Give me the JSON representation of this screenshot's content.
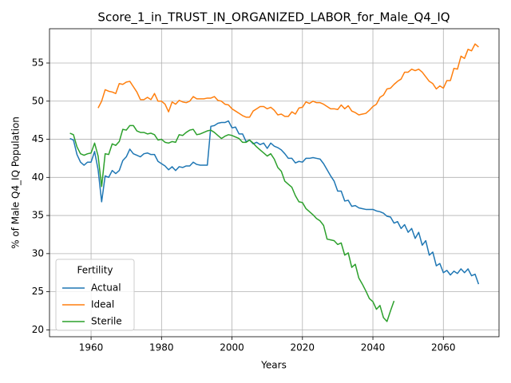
{
  "chart_data": {
    "type": "line",
    "title": "Score_1_in_TRUST_IN_ORGANIZED_LABOR_for_Male_Q4_IQ",
    "xlabel": "Years",
    "ylabel": "% of Male Q4_IQ Population",
    "legend_title": "Fertility",
    "legend": "lower left",
    "grid": true,
    "xlim": [
      1948.2,
      2075.8
    ],
    "ylim": [
      19.1,
      59.5
    ],
    "xticks": [
      1960,
      1980,
      2000,
      2020,
      2040,
      2060
    ],
    "yticks": [
      20,
      25,
      30,
      35,
      40,
      45,
      50,
      55
    ],
    "x": [
      1954,
      1955,
      1956,
      1957,
      1958,
      1959,
      1960,
      1961,
      1962,
      1963,
      1964,
      1965,
      1966,
      1967,
      1968,
      1969,
      1970,
      1971,
      1972,
      1973,
      1974,
      1975,
      1976,
      1977,
      1978,
      1979,
      1980,
      1981,
      1982,
      1983,
      1984,
      1985,
      1986,
      1987,
      1988,
      1989,
      1990,
      1991,
      1992,
      1993,
      1994,
      1995,
      1996,
      1997,
      1998,
      1999,
      2000,
      2001,
      2002,
      2003,
      2004,
      2005,
      2006,
      2007,
      2008,
      2009,
      2010,
      2011,
      2012,
      2013,
      2014,
      2015,
      2016,
      2017,
      2018,
      2019,
      2020,
      2021,
      2022,
      2023,
      2024,
      2025,
      2026,
      2027,
      2028,
      2029,
      2030,
      2031,
      2032,
      2033,
      2034,
      2035,
      2036,
      2037,
      2038,
      2039,
      2040,
      2041,
      2042,
      2043,
      2044,
      2045,
      2046,
      2047,
      2048,
      2049,
      2050,
      2051,
      2052,
      2053,
      2054,
      2055,
      2056,
      2057,
      2058,
      2059,
      2060,
      2061,
      2062,
      2063,
      2064,
      2065,
      2066,
      2067,
      2068,
      2069,
      2070
    ],
    "series": [
      {
        "name": "Actual",
        "color": "#1f77b4",
        "values": [
          45.1,
          44.9,
          43.0,
          42.0,
          41.6,
          42.0,
          42.0,
          43.4,
          41.0,
          36.8,
          40.2,
          40.0,
          40.9,
          40.5,
          40.9,
          42.2,
          42.7,
          43.7,
          43.1,
          42.9,
          42.7,
          43.1,
          43.2,
          43.0,
          43.0,
          42.1,
          41.8,
          41.5,
          41.0,
          41.4,
          40.9,
          41.4,
          41.3,
          41.5,
          41.5,
          42.0,
          41.7,
          41.6,
          41.6,
          41.6,
          46.7,
          46.8,
          47.1,
          47.2,
          47.2,
          47.4,
          46.5,
          46.6,
          45.7,
          45.7,
          44.7,
          44.9,
          44.4,
          44.6,
          44.3,
          44.5,
          43.8,
          44.5,
          44.1,
          43.9,
          43.6,
          43.1,
          42.5,
          42.5,
          41.9,
          42.1,
          42.0,
          42.5,
          42.5,
          42.6,
          42.5,
          42.4,
          41.8,
          41.0,
          40.2,
          39.5,
          38.2,
          38.2,
          36.9,
          37.0,
          36.2,
          36.3,
          36.0,
          35.9,
          35.8,
          35.8,
          35.8,
          35.6,
          35.5,
          35.3,
          34.9,
          34.8,
          34.0,
          34.2,
          33.3,
          33.8,
          32.8,
          33.3,
          32.0,
          32.8,
          31.1,
          31.7,
          29.8,
          30.2,
          28.4,
          28.7,
          27.5,
          27.8,
          27.2,
          27.7,
          27.4,
          28.0,
          27.5,
          28.0,
          27.1,
          27.3,
          26.0
        ]
      },
      {
        "name": "Ideal",
        "color": "#ff7f0e",
        "values": [
          null,
          null,
          null,
          null,
          null,
          null,
          null,
          null,
          49.1,
          50.0,
          51.5,
          51.3,
          51.2,
          51.0,
          52.3,
          52.2,
          52.5,
          52.6,
          51.9,
          51.2,
          50.2,
          50.2,
          50.5,
          50.2,
          51.0,
          50.0,
          50.0,
          49.6,
          48.6,
          49.9,
          49.6,
          50.1,
          49.9,
          49.8,
          50.0,
          50.6,
          50.3,
          50.3,
          50.3,
          50.4,
          50.4,
          50.6,
          50.1,
          50.0,
          49.6,
          49.5,
          49.0,
          48.7,
          48.4,
          48.1,
          47.9,
          47.9,
          48.7,
          49.0,
          49.3,
          49.3,
          49.0,
          49.2,
          48.8,
          48.2,
          48.3,
          48.0,
          48.0,
          48.6,
          48.3,
          49.1,
          49.2,
          49.9,
          49.7,
          50.0,
          49.8,
          49.8,
          49.6,
          49.3,
          49.0,
          49.0,
          48.9,
          49.5,
          49.0,
          49.4,
          48.7,
          48.5,
          48.2,
          48.3,
          48.4,
          48.8,
          49.3,
          49.6,
          50.5,
          50.8,
          51.6,
          51.7,
          52.2,
          52.6,
          52.9,
          53.8,
          53.8,
          54.2,
          54.0,
          54.2,
          53.8,
          53.2,
          52.6,
          52.3,
          51.6,
          52.0,
          51.7,
          52.7,
          52.7,
          54.3,
          54.2,
          55.9,
          55.6,
          56.8,
          56.6,
          57.5,
          57.1
        ]
      },
      {
        "name": "Sterile",
        "color": "#2ca02c",
        "values": [
          45.8,
          45.6,
          44.0,
          43.1,
          42.9,
          43.1,
          43.2,
          44.5,
          42.8,
          38.8,
          43.1,
          43.0,
          44.4,
          44.2,
          44.7,
          46.3,
          46.2,
          46.8,
          46.8,
          46.1,
          45.9,
          45.9,
          45.7,
          45.8,
          45.6,
          44.9,
          45.0,
          44.6,
          44.5,
          44.7,
          44.6,
          45.6,
          45.5,
          45.9,
          46.2,
          46.3,
          45.6,
          45.7,
          45.9,
          46.1,
          46.2,
          45.9,
          45.5,
          45.1,
          45.4,
          45.6,
          45.5,
          45.3,
          45.1,
          44.6,
          44.6,
          44.9,
          44.5,
          44.0,
          43.6,
          43.2,
          42.8,
          43.1,
          42.4,
          41.3,
          40.8,
          39.5,
          39.1,
          38.7,
          37.6,
          36.8,
          36.7,
          35.9,
          35.5,
          35.1,
          34.6,
          34.3,
          33.7,
          31.9,
          31.8,
          31.7,
          31.2,
          31.4,
          29.8,
          30.1,
          28.2,
          28.6,
          26.8,
          26.0,
          25.1,
          24.1,
          23.7,
          22.7,
          23.2,
          21.6,
          21.1,
          22.5,
          23.8,
          null,
          null,
          null,
          null,
          null,
          null,
          null,
          null,
          null,
          null,
          null,
          null,
          null,
          null,
          null,
          null,
          null,
          null,
          null,
          null,
          null,
          null,
          null,
          null
        ]
      }
    ]
  }
}
